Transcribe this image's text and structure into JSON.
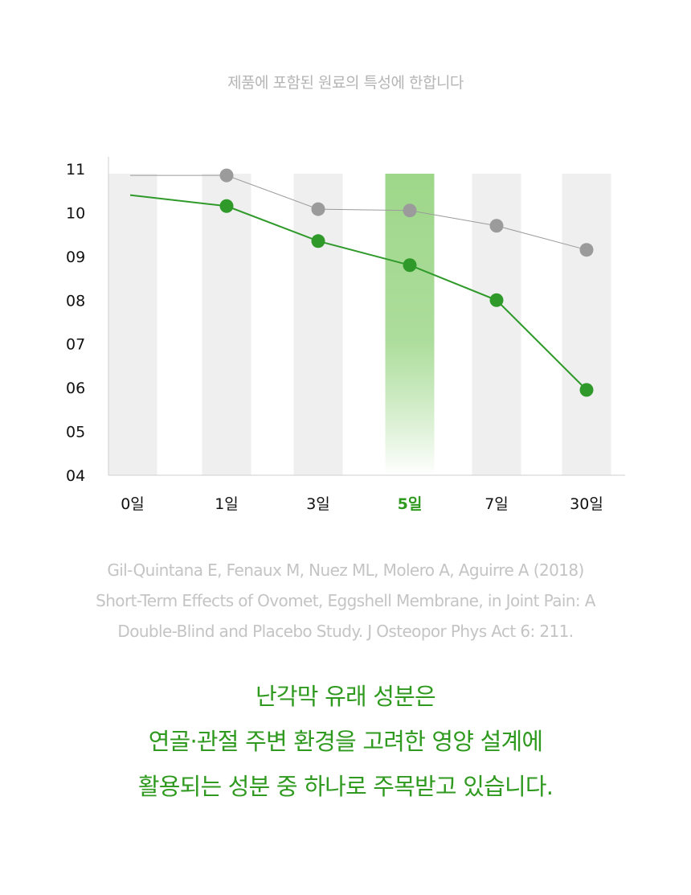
{
  "disclaimer": "제품에 포함된 원료의 특성에 한합니다",
  "chart_data": {
    "type": "line",
    "categories": [
      "0일",
      "1일",
      "3일",
      "5일",
      "7일",
      "30일"
    ],
    "highlight_category": "5일",
    "yticks": [
      "11",
      "10",
      "09",
      "08",
      "07",
      "06",
      "05",
      "04"
    ],
    "ylim": [
      4,
      11
    ],
    "grid": false,
    "series": [
      {
        "color": "#9b9b9b",
        "values": [
          10.85,
          10.85,
          10.08,
          10.05,
          9.7,
          9.15
        ],
        "markers": [
          false,
          true,
          true,
          true,
          true,
          true
        ]
      },
      {
        "color": "#2f9a2a",
        "values": [
          10.4,
          10.15,
          9.35,
          8.8,
          8.0,
          5.95
        ],
        "markers": [
          false,
          true,
          true,
          true,
          true,
          true
        ]
      }
    ],
    "colors": {
      "band": "#efefef",
      "highlight_top": "#9ed78a",
      "highlight_label": "#2f9a1f",
      "axis": "#cfcfcf",
      "tick_text": "#111111"
    }
  },
  "citation": {
    "line1": "Gil-Quintana E, Fenaux M, Nuez ML, Molero A, Aguirre A (2018)",
    "line2": "Short-Term Effects of Ovomet, Eggshell Membrane, in Joint Pain: A",
    "line3": "Double-Blind and Placebo Study. J Osteopor Phys Act 6: 211."
  },
  "headline": {
    "line1": "난각막 유래 성분은",
    "line2": "연골·관절 주변 환경을 고려한 영양 설계에",
    "line3": "활용되는 성분 중 하나로 주목받고 있습니다."
  }
}
